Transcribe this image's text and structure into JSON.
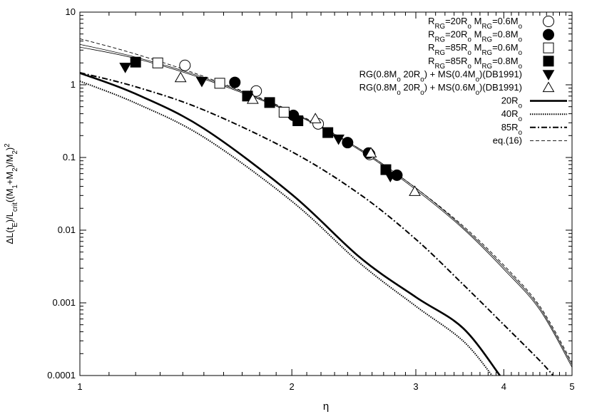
{
  "chart_data": {
    "type": "scatter",
    "xscale": "log",
    "yscale": "log",
    "xlim": [
      1,
      5
    ],
    "ylim": [
      0.0001,
      10
    ],
    "xlabel": "η",
    "ylabel": "ΔL(tE)/Lcrit((M1+M2)/M2)^2",
    "xticks": [
      {
        "value": 1,
        "label": "1"
      },
      {
        "value": 2,
        "label": "2"
      },
      {
        "value": 3,
        "label": "3"
      },
      {
        "value": 4,
        "label": "4"
      },
      {
        "value": 5,
        "label": "5"
      }
    ],
    "yticks": [
      {
        "value": 0.0001,
        "label": "0.0001"
      },
      {
        "value": 0.001,
        "label": "0.001"
      },
      {
        "value": 0.01,
        "label": "0.01"
      },
      {
        "value": 0.1,
        "label": "0.1"
      },
      {
        "value": 1,
        "label": "1"
      },
      {
        "value": 10,
        "label": "10"
      }
    ],
    "legend_position": "top-right",
    "grid": false,
    "series": [
      {
        "name": "RRG=20Ro MRG=0.6Mo",
        "marker": "circle-open",
        "points": [
          [
            1.41,
            1.85
          ],
          [
            1.78,
            0.82
          ],
          [
            2.18,
            0.29
          ],
          [
            2.58,
            0.11
          ]
        ]
      },
      {
        "name": "RRG=20Ro MRG=0.8Mo",
        "marker": "circle-filled",
        "points": [
          [
            1.66,
            1.08
          ],
          [
            2.01,
            0.38
          ],
          [
            2.4,
            0.16
          ],
          [
            2.57,
            0.115
          ],
          [
            2.82,
            0.057
          ]
        ]
      },
      {
        "name": "RRG=85Ro MRG=0.6Mo",
        "marker": "square-open",
        "points": [
          [
            1.29,
            2.0
          ],
          [
            1.58,
            1.05
          ],
          [
            1.95,
            0.42
          ]
        ]
      },
      {
        "name": "RRG=85Ro MRG=0.8Mo",
        "marker": "square-filled",
        "points": [
          [
            1.2,
            2.05
          ],
          [
            1.73,
            0.7
          ],
          [
            1.86,
            0.57
          ],
          [
            2.04,
            0.32
          ],
          [
            2.25,
            0.22
          ],
          [
            2.72,
            0.068
          ]
        ]
      },
      {
        "name": "RG(0.8Mo 20Ro) + MS(0.4Mo)(DB1991)",
        "marker": "triangle-down-filled",
        "points": [
          [
            1.16,
            1.75
          ],
          [
            1.49,
            1.12
          ],
          [
            2.33,
            0.18
          ],
          [
            2.76,
            0.055
          ]
        ]
      },
      {
        "name": "RG(0.8Mo 20Ro) + MS(0.6Mo)(DB1991)",
        "marker": "triangle-up-open",
        "points": [
          [
            1.39,
            1.25
          ],
          [
            1.76,
            0.63
          ],
          [
            2.16,
            0.34
          ],
          [
            2.59,
            0.115
          ],
          [
            2.99,
            0.034
          ]
        ]
      }
    ],
    "curves": [
      {
        "name": "20Ro",
        "style": "thick-solid",
        "points": [
          [
            1,
            1.45
          ],
          [
            1.2,
            0.75
          ],
          [
            1.5,
            0.25
          ],
          [
            2,
            0.031
          ],
          [
            2.5,
            0.0042
          ],
          [
            3,
            0.0012
          ],
          [
            3.5,
            0.00045
          ],
          [
            3.95,
            0.0001
          ]
        ]
      },
      {
        "name": "40Ro",
        "style": "dotted",
        "points": [
          [
            1,
            1.12
          ],
          [
            1.2,
            0.56
          ],
          [
            1.5,
            0.19
          ],
          [
            2,
            0.025
          ],
          [
            2.5,
            0.0035
          ],
          [
            3,
            0.0009
          ],
          [
            3.5,
            0.0003
          ],
          [
            3.85,
            0.0001
          ]
        ]
      },
      {
        "name": "85Ro",
        "style": "dash-dot",
        "points": [
          [
            1,
            1.47
          ],
          [
            1.2,
            0.94
          ],
          [
            1.5,
            0.45
          ],
          [
            2,
            0.12
          ],
          [
            2.5,
            0.031
          ],
          [
            3,
            0.0075
          ],
          [
            3.5,
            0.0018
          ],
          [
            4,
            0.0005
          ],
          [
            4.5,
            0.00016
          ],
          [
            4.7,
            0.0001
          ]
        ]
      },
      {
        "name": "eq.(16)",
        "style": "thin-dashed",
        "points": [
          [
            1,
            4.3
          ],
          [
            1.2,
            2.65
          ],
          [
            1.5,
            1.3
          ],
          [
            2,
            0.43
          ],
          [
            2.5,
            0.13
          ],
          [
            3,
            0.038
          ],
          [
            3.5,
            0.0115
          ],
          [
            4,
            0.0033
          ],
          [
            4.5,
            0.0009
          ],
          [
            5,
            0.00015
          ]
        ]
      },
      {
        "name": "",
        "style": "thin-solid",
        "points": [
          [
            1,
            3.6
          ],
          [
            1.2,
            2.4
          ],
          [
            1.5,
            1.25
          ],
          [
            2,
            0.42
          ],
          [
            2.5,
            0.13
          ],
          [
            3,
            0.038
          ],
          [
            3.5,
            0.011
          ],
          [
            4,
            0.0031
          ],
          [
            4.5,
            0.00085
          ],
          [
            5,
            0.00014
          ]
        ]
      },
      {
        "name": "",
        "style": "thin-solid",
        "points": [
          [
            1,
            3.3
          ],
          [
            1.2,
            2.3
          ],
          [
            1.5,
            1.2
          ],
          [
            2,
            0.41
          ],
          [
            2.5,
            0.125
          ],
          [
            3,
            0.036
          ],
          [
            3.5,
            0.0105
          ],
          [
            4,
            0.0029
          ],
          [
            4.5,
            0.0008
          ],
          [
            5,
            0.00013
          ]
        ]
      }
    ]
  }
}
